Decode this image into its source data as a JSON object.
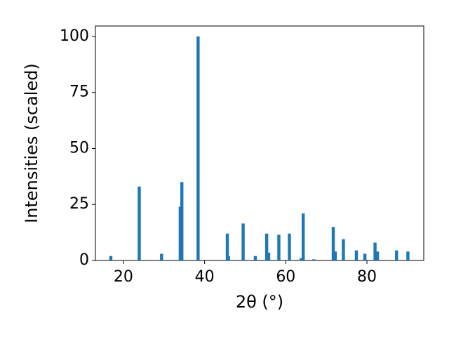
{
  "chart_data": {
    "type": "bar",
    "x_label": "2θ (°)",
    "y_label": "Intensities (scaled)",
    "x": [
      16.9,
      23.9,
      29.4,
      34.0,
      34.4,
      38.4,
      45.6,
      45.9,
      49.5,
      52.5,
      55.3,
      55.8,
      58.3,
      60.9,
      63.8,
      64.3,
      66.9,
      71.7,
      72.2,
      74.2,
      77.4,
      79.5,
      82.0,
      82.6,
      87.3,
      90.1
    ],
    "values": [
      2,
      33,
      3,
      24,
      35,
      100,
      12,
      2,
      16.5,
      2,
      12,
      3.5,
      11.5,
      12,
      1,
      21,
      0.5,
      15,
      4,
      9.5,
      4.5,
      3,
      8,
      4,
      4.5,
      4
    ],
    "color": "#1f77b4",
    "xlim": [
      13.1,
      94.0
    ],
    "ylim": [
      0,
      104.7
    ],
    "xticks": [
      20,
      40,
      60,
      80
    ],
    "yticks": [
      0,
      25,
      50,
      75,
      100
    ]
  }
}
